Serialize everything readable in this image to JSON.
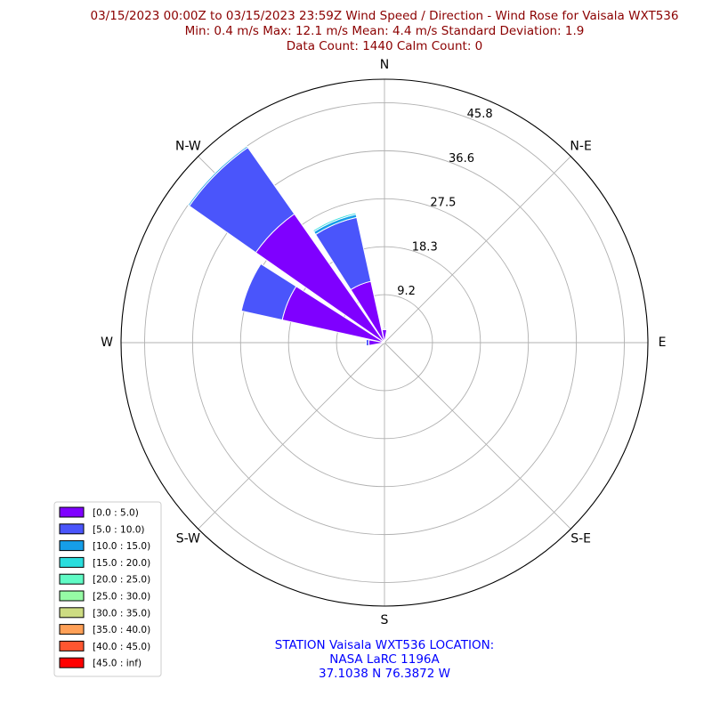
{
  "chart_data": {
    "type": "windrose",
    "title_lines": [
      "03/15/2023 00:00Z to 03/15/2023 23:59Z Wind Speed / Direction - Wind Rose for Vaisala WXT536",
      "Min: 0.4 m/s   Max: 12.1 m/s   Mean: 4.4 m/s  Standard Deviation: 1.9",
      "Data Count: 1440  Calm Count:  0"
    ],
    "title_color": "#8b0000",
    "directions": [
      {
        "label": "N",
        "angle": 0
      },
      {
        "label": "N-E",
        "angle": 45
      },
      {
        "label": "E",
        "angle": 90
      },
      {
        "label": "S-E",
        "angle": 135
      },
      {
        "label": "S",
        "angle": 180
      },
      {
        "label": "S-W",
        "angle": 225
      },
      {
        "label": "W",
        "angle": 270
      },
      {
        "label": "N-W",
        "angle": 315
      }
    ],
    "radial_ticks": [
      "9.2",
      "18.3",
      "27.5",
      "36.6",
      "45.8"
    ],
    "radial_values": [
      9.16,
      18.32,
      27.48,
      36.64,
      45.8
    ],
    "rmax": 50.3,
    "bins": [
      {
        "label": "[0.0 : 5.0)",
        "color": "#7f00ff"
      },
      {
        "label": "[5.0 : 10.0)",
        "color": "#4a55fb"
      },
      {
        "label": "[10.0 : 15.0)",
        "color": "#169ee8"
      },
      {
        "label": "[15.0 : 20.0)",
        "color": "#2adddd"
      },
      {
        "label": "[20.0 : 25.0)",
        "color": "#60fbc5"
      },
      {
        "label": "[25.0 : 30.0)",
        "color": "#96fba5"
      },
      {
        "label": "[30.0 : 35.0)",
        "color": "#cddc82"
      },
      {
        "label": "[35.0 : 40.0)",
        "color": "#ffa057"
      },
      {
        "label": "[40.0 : 45.0)",
        "color": "#ff5630"
      },
      {
        "label": "[45.0 : inf)",
        "color": "#ff0000"
      }
    ],
    "sectors": [
      {
        "direction": 0,
        "segments": [
          2.5,
          0.2
        ]
      },
      {
        "direction": 270,
        "segments": [
          3.0,
          0.5
        ]
      },
      {
        "direction": 292.5,
        "segments": [
          20.0,
          8.0
        ]
      },
      {
        "direction": 315,
        "segments": [
          30.0,
          15.5,
          0.3
        ]
      },
      {
        "direction": 337.5,
        "segments": [
          12.0,
          12.5,
          0.6,
          0.3
        ]
      }
    ],
    "sector_width_deg": 20,
    "legend_position": "lower-left"
  },
  "footer": {
    "lines": [
      "STATION Vaisala WXT536 LOCATION:",
      "NASA LaRC 1196A",
      "37.1038 N 76.3872 W"
    ],
    "color": "#0000ff"
  }
}
